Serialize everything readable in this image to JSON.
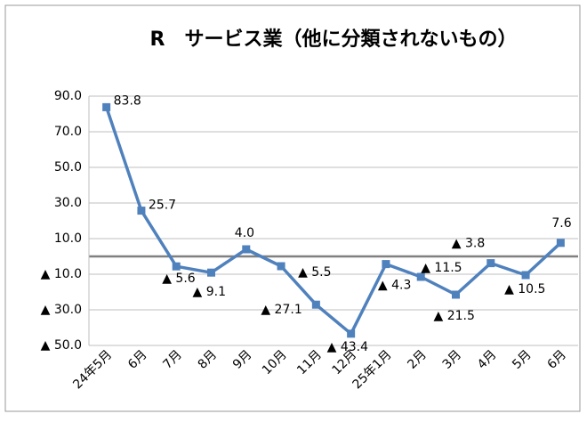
{
  "chart_data": {
    "type": "line",
    "title": "R　サービス業（他に分類されないもの）",
    "categories": [
      "24年5月",
      "6月",
      "7月",
      "8月",
      "9月",
      "10月",
      "11月",
      "12月",
      "25年1月",
      "2月",
      "3月",
      "4月",
      "5月",
      "6月"
    ],
    "series": [
      {
        "color": "#4f81bd",
        "values": [
          83.8,
          25.7,
          -5.6,
          -9.1,
          4.0,
          -5.5,
          -27.1,
          -43.4,
          -4.3,
          -11.5,
          -21.5,
          -3.8,
          -10.5,
          7.6
        ],
        "value_labels": [
          "83.8",
          "25.7",
          "▲ 5.6",
          "▲ 9.1",
          "4.0",
          "▲ 5.5",
          "▲ 27.1",
          "▲ 43.4",
          "▲ 4.3",
          "▲ 11.5",
          "▲ 21.5",
          "▲ 3.8",
          "▲ 10.5",
          "7.6"
        ]
      }
    ],
    "ylim": [
      -50,
      90
    ],
    "yticks": [
      {
        "value": 90,
        "label": "90.0"
      },
      {
        "value": 70,
        "label": "70.0"
      },
      {
        "value": 50,
        "label": "50.0"
      },
      {
        "value": 30,
        "label": "30.0"
      },
      {
        "value": 10,
        "label": "10.0"
      },
      {
        "value": -10,
        "label": "▲ 10.0"
      },
      {
        "value": -30,
        "label": "▲ 30.0"
      },
      {
        "value": -50,
        "label": "▲ 50.0"
      }
    ],
    "grid": true
  }
}
